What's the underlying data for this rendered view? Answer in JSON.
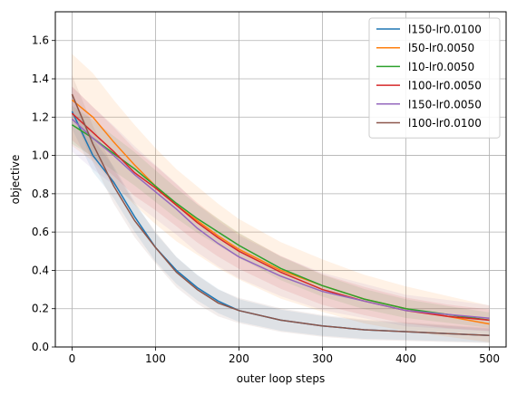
{
  "chart_data": {
    "type": "line",
    "xlabel": "outer loop steps",
    "ylabel": "objective",
    "xlim": [
      -20,
      520
    ],
    "ylim": [
      0.0,
      1.75
    ],
    "xticks": [
      0,
      100,
      200,
      300,
      400,
      500
    ],
    "yticks": [
      0.0,
      0.2,
      0.4,
      0.6,
      0.8,
      1.0,
      1.2,
      1.4,
      1.6
    ],
    "grid": true,
    "legend_position": "top-right",
    "x": [
      0,
      25,
      50,
      75,
      100,
      125,
      150,
      175,
      200,
      250,
      300,
      350,
      400,
      450,
      500
    ],
    "series": [
      {
        "name": "l150-lr0.0100",
        "color": "#1f77b4",
        "values": [
          1.23,
          1.0,
          0.86,
          0.68,
          0.52,
          0.4,
          0.31,
          0.24,
          0.19,
          0.14,
          0.11,
          0.09,
          0.08,
          0.07,
          0.06
        ],
        "band": 0.09
      },
      {
        "name": "l50-lr0.0050",
        "color": "#ff7f0e",
        "values": [
          1.29,
          1.2,
          1.07,
          0.95,
          0.84,
          0.74,
          0.66,
          0.58,
          0.51,
          0.4,
          0.32,
          0.25,
          0.2,
          0.16,
          0.12
        ],
        "band": 0.24
      },
      {
        "name": "l10-lr0.0050",
        "color": "#2ca02c",
        "values": [
          1.16,
          1.09,
          1.01,
          0.93,
          0.84,
          0.75,
          0.67,
          0.6,
          0.53,
          0.41,
          0.32,
          0.25,
          0.2,
          0.17,
          0.14
        ],
        "band": 0.1
      },
      {
        "name": "l100-lr0.0050",
        "color": "#d62728",
        "values": [
          1.22,
          1.12,
          1.02,
          0.91,
          0.83,
          0.74,
          0.65,
          0.57,
          0.5,
          0.39,
          0.3,
          0.24,
          0.19,
          0.16,
          0.14
        ],
        "band": 0.14
      },
      {
        "name": "l150-lr0.0050",
        "color": "#9467bd",
        "values": [
          1.19,
          1.09,
          1.0,
          0.9,
          0.81,
          0.72,
          0.62,
          0.54,
          0.47,
          0.37,
          0.29,
          0.24,
          0.19,
          0.17,
          0.15
        ],
        "band": 0.17
      },
      {
        "name": "l100-lr0.0100",
        "color": "#8c564b",
        "values": [
          1.32,
          1.06,
          0.84,
          0.66,
          0.52,
          0.39,
          0.3,
          0.23,
          0.19,
          0.14,
          0.11,
          0.09,
          0.08,
          0.07,
          0.06
        ],
        "band": 0.1
      }
    ]
  }
}
